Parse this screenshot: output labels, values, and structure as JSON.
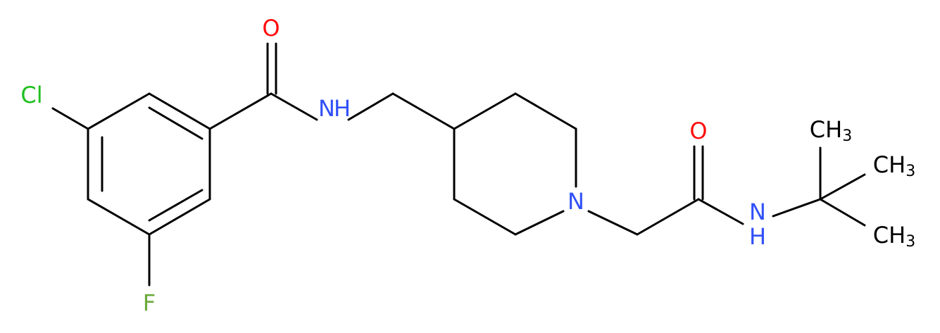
{
  "atoms": {
    "carbonyl_o_1": "O",
    "chlorine": "Cl",
    "amide_n_1": "N",
    "amide_h_1": "H",
    "fluorine": "F",
    "piperidine_n": "N",
    "carbonyl_o_2": "O",
    "amide_n_2": "N",
    "amide_h_2": "H",
    "methyls": [
      {
        "main": "CH",
        "sub": "3"
      },
      {
        "main": "CH",
        "sub": "3"
      },
      {
        "main": "CH",
        "sub": "3"
      }
    ]
  }
}
